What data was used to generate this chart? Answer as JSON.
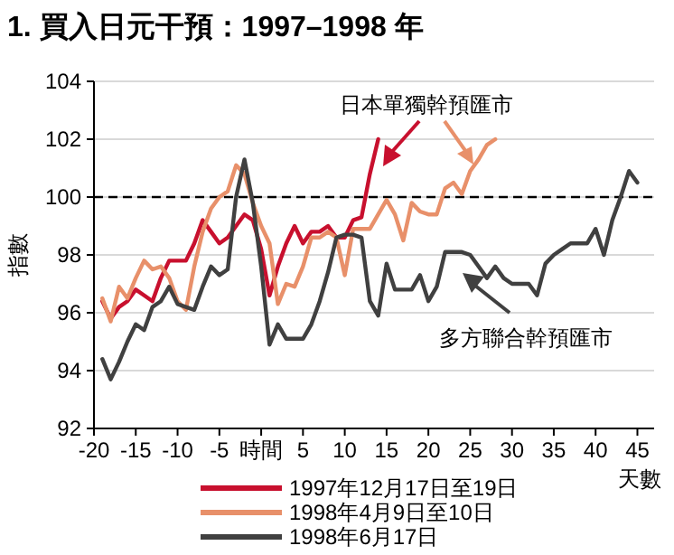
{
  "chart_data": {
    "type": "line",
    "title": "1. 買入日元干預：1997–1998 年",
    "xlabel": "天數",
    "ylabel": "指數",
    "xlim": [
      -20,
      47
    ],
    "xticks": [
      -20,
      -15,
      -10,
      -5,
      {
        "value": 0,
        "label": "時間"
      },
      5,
      10,
      15,
      20,
      25,
      30,
      35,
      40,
      45
    ],
    "ylim": [
      92,
      104
    ],
    "yticks": [
      92,
      94,
      96,
      98,
      100,
      102,
      104
    ],
    "grid": "y",
    "legend": "bottom",
    "line_style": "solid",
    "ref_lines": [
      {
        "axis": "y",
        "value": 100,
        "label": null,
        "line_style": "dashed",
        "color": "#000000"
      }
    ],
    "annotations": [
      "日本單獨幹預匯市",
      "多方聯合幹預匯市"
    ],
    "series": [
      {
        "name": "1997年12月17日至19日",
        "color": "#c8102e",
        "x": [
          -19,
          -18,
          -17,
          -16,
          -15,
          -14,
          -13,
          -12,
          -11,
          -10,
          -9,
          -8,
          -7,
          -6,
          -5,
          -4,
          -3,
          -2,
          -1,
          0,
          1,
          2,
          3,
          4,
          5,
          6,
          7,
          8,
          9,
          10,
          11,
          12,
          13,
          14
        ],
        "values": [
          96.4,
          95.8,
          96.2,
          96.4,
          96.8,
          96.6,
          96.4,
          97.2,
          97.8,
          97.8,
          97.8,
          98.4,
          99.2,
          98.8,
          98.4,
          98.6,
          99.0,
          99.4,
          99.2,
          98.2,
          96.6,
          97.6,
          98.4,
          99.0,
          98.4,
          98.8,
          98.8,
          99.0,
          98.6,
          98.6,
          99.2,
          99.3,
          100.8,
          102.0
        ]
      },
      {
        "name": "1998年4月9日至10日",
        "color": "#e8906a",
        "x": [
          -19,
          -18,
          -17,
          -16,
          -15,
          -14,
          -13,
          -12,
          -11,
          -10,
          -9,
          -8,
          -7,
          -6,
          -5,
          -4,
          -3,
          -2,
          -1,
          0,
          1,
          2,
          3,
          4,
          5,
          6,
          7,
          8,
          9,
          10,
          11,
          12,
          13,
          14,
          15,
          16,
          17,
          18,
          19,
          20,
          21,
          22,
          23,
          24,
          25,
          26,
          27,
          28
        ],
        "values": [
          96.5,
          95.7,
          96.9,
          96.5,
          97.2,
          97.8,
          97.5,
          97.6,
          97.2,
          96.4,
          96.1,
          97.6,
          98.8,
          99.6,
          100.0,
          100.2,
          101.1,
          100.8,
          99.8,
          99.0,
          98.4,
          96.3,
          97.0,
          96.9,
          97.6,
          98.6,
          98.6,
          98.8,
          98.6,
          97.3,
          98.9,
          98.9,
          98.9,
          99.4,
          99.9,
          99.4,
          98.5,
          99.8,
          99.5,
          99.4,
          99.4,
          100.3,
          100.5,
          100.1,
          100.9,
          101.3,
          101.8,
          102.0
        ]
      },
      {
        "name": "1998年6月17日",
        "color": "#404040",
        "x": [
          -19,
          -18,
          -17,
          -16,
          -15,
          -14,
          -13,
          -12,
          -11,
          -10,
          -9,
          -8,
          -7,
          -6,
          -5,
          -4,
          -3,
          -2,
          -1,
          0,
          1,
          2,
          3,
          4,
          5,
          6,
          7,
          8,
          9,
          10,
          11,
          12,
          13,
          14,
          15,
          16,
          17,
          18,
          19,
          20,
          21,
          22,
          23,
          24,
          25,
          26,
          27,
          28,
          29,
          30,
          31,
          32,
          33,
          34,
          35,
          36,
          37,
          38,
          39,
          40,
          41,
          42,
          43,
          44,
          45
        ],
        "values": [
          94.4,
          93.7,
          94.3,
          95.0,
          95.6,
          95.4,
          96.2,
          96.4,
          96.9,
          96.3,
          96.2,
          96.1,
          96.9,
          97.6,
          97.3,
          97.5,
          100.0,
          101.3,
          99.8,
          97.6,
          94.9,
          95.6,
          95.1,
          95.1,
          95.1,
          95.6,
          96.4,
          97.4,
          98.6,
          98.7,
          98.7,
          98.6,
          96.4,
          95.9,
          97.7,
          96.8,
          96.8,
          96.8,
          97.3,
          96.4,
          96.9,
          98.1,
          98.1,
          98.1,
          98.0,
          97.6,
          97.2,
          97.6,
          97.2,
          97.0,
          97.0,
          97.0,
          96.6,
          97.7,
          98.0,
          98.2,
          98.4,
          98.4,
          98.4,
          98.9,
          98.0,
          99.2,
          100.0,
          100.9,
          100.5
        ]
      }
    ]
  }
}
